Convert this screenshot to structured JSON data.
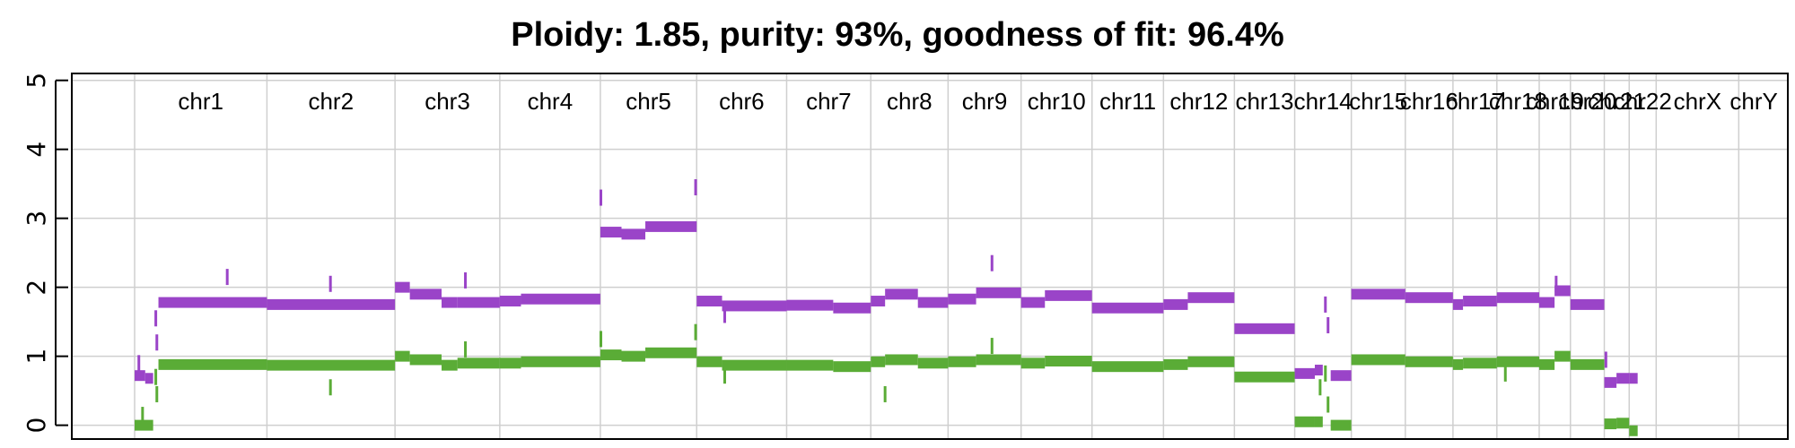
{
  "chart_data": {
    "type": "scatter",
    "title": "Ploidy: 1.85, purity: 93%, goodness of fit: 96.4%",
    "xlabel": "",
    "ylabel": "",
    "ylim": [
      -0.2,
      5.1
    ],
    "yticks": [
      0,
      1,
      2,
      3,
      4,
      5
    ],
    "grid": true,
    "colors": {
      "total": "#9a44c8",
      "minor": "#5aac36",
      "grid": "#cfcfcf",
      "axis": "#000000"
    },
    "genome_extent": [
      0,
      3100
    ],
    "chromosomes": [
      {
        "name": "chr1",
        "start": 0,
        "end": 250
      },
      {
        "name": "chr2",
        "start": 250,
        "end": 492
      },
      {
        "name": "chr3",
        "start": 492,
        "end": 690
      },
      {
        "name": "chr4",
        "start": 690,
        "end": 880
      },
      {
        "name": "chr5",
        "start": 880,
        "end": 1062
      },
      {
        "name": "chr6",
        "start": 1062,
        "end": 1232
      },
      {
        "name": "chr7",
        "start": 1232,
        "end": 1391
      },
      {
        "name": "chr8",
        "start": 1391,
        "end": 1537
      },
      {
        "name": "chr9",
        "start": 1537,
        "end": 1675
      },
      {
        "name": "chr10",
        "start": 1675,
        "end": 1809
      },
      {
        "name": "chr11",
        "start": 1809,
        "end": 1944
      },
      {
        "name": "chr12",
        "start": 1944,
        "end": 2078
      },
      {
        "name": "chr13",
        "start": 2078,
        "end": 2192
      },
      {
        "name": "chr14",
        "start": 2192,
        "end": 2299
      },
      {
        "name": "chr15",
        "start": 2299,
        "end": 2401
      },
      {
        "name": "chr16",
        "start": 2401,
        "end": 2491
      },
      {
        "name": "chr17",
        "start": 2491,
        "end": 2574
      },
      {
        "name": "chr18",
        "start": 2574,
        "end": 2654
      },
      {
        "name": "chr19",
        "start": 2654,
        "end": 2713
      },
      {
        "name": "chr20",
        "start": 2713,
        "end": 2777
      },
      {
        "name": "chr21",
        "start": 2777,
        "end": 2824
      },
      {
        "name": "chr22",
        "start": 2824,
        "end": 2875
      },
      {
        "name": "chrX",
        "start": 2875,
        "end": 3031
      },
      {
        "name": "chrY",
        "start": 3031,
        "end": 3088
      }
    ],
    "series": [
      {
        "color_key": "total",
        "segments": [
          {
            "x": [
              0,
              20
            ],
            "y": 0.72
          },
          {
            "x": [
              20,
              35
            ],
            "y": 0.68
          },
          {
            "x": [
              45,
              250
            ],
            "y": 1.78
          },
          {
            "x": [
              250,
              492
            ],
            "y": 1.75
          },
          {
            "x": [
              492,
              520
            ],
            "y": 2.0
          },
          {
            "x": [
              520,
              580
            ],
            "y": 1.9
          },
          {
            "x": [
              580,
              610
            ],
            "y": 1.78
          },
          {
            "x": [
              610,
              690
            ],
            "y": 1.78
          },
          {
            "x": [
              690,
              730
            ],
            "y": 1.8
          },
          {
            "x": [
              730,
              880
            ],
            "y": 1.83
          },
          {
            "x": [
              880,
              920
            ],
            "y": 2.8
          },
          {
            "x": [
              920,
              965
            ],
            "y": 2.77
          },
          {
            "x": [
              965,
              1062
            ],
            "y": 2.88
          },
          {
            "x": [
              1062,
              1110
            ],
            "y": 1.8
          },
          {
            "x": [
              1110,
              1232
            ],
            "y": 1.73
          },
          {
            "x": [
              1232,
              1320
            ],
            "y": 1.74
          },
          {
            "x": [
              1320,
              1391
            ],
            "y": 1.7
          },
          {
            "x": [
              1391,
              1418
            ],
            "y": 1.8
          },
          {
            "x": [
              1418,
              1480
            ],
            "y": 1.9
          },
          {
            "x": [
              1480,
              1537
            ],
            "y": 1.78
          },
          {
            "x": [
              1537,
              1590
            ],
            "y": 1.83
          },
          {
            "x": [
              1590,
              1675
            ],
            "y": 1.92
          },
          {
            "x": [
              1675,
              1720
            ],
            "y": 1.78
          },
          {
            "x": [
              1720,
              1809
            ],
            "y": 1.88
          },
          {
            "x": [
              1809,
              1944
            ],
            "y": 1.7
          },
          {
            "x": [
              1944,
              1990
            ],
            "y": 1.75
          },
          {
            "x": [
              1990,
              2078
            ],
            "y": 1.85
          },
          {
            "x": [
              2078,
              2192
            ],
            "y": 1.4
          },
          {
            "x": [
              2192,
              2230
            ],
            "y": 0.75
          },
          {
            "x": [
              2230,
              2245
            ],
            "y": 0.8
          },
          {
            "x": [
              2260,
              2299
            ],
            "y": 0.72
          },
          {
            "x": [
              2299,
              2401
            ],
            "y": 1.9
          },
          {
            "x": [
              2401,
              2491
            ],
            "y": 1.85
          },
          {
            "x": [
              2491,
              2510
            ],
            "y": 1.75
          },
          {
            "x": [
              2510,
              2574
            ],
            "y": 1.8
          },
          {
            "x": [
              2574,
              2654
            ],
            "y": 1.85
          },
          {
            "x": [
              2654,
              2683
            ],
            "y": 1.78
          },
          {
            "x": [
              2683,
              2713
            ],
            "y": 1.95
          },
          {
            "x": [
              2713,
              2777
            ],
            "y": 1.75
          },
          {
            "x": [
              2777,
              2800
            ],
            "y": 0.62
          },
          {
            "x": [
              2800,
              2824
            ],
            "y": 0.68
          },
          {
            "x": [
              2824,
              2840
            ],
            "y": 0.68
          }
        ],
        "outliers": [
          {
            "x": 8,
            "y": 0.9
          },
          {
            "x": 40,
            "y": 1.55
          },
          {
            "x": 42,
            "y": 1.2
          },
          {
            "x": 175,
            "y": 2.15
          },
          {
            "x": 370,
            "y": 2.05
          },
          {
            "x": 625,
            "y": 2.1
          },
          {
            "x": 881,
            "y": 3.3
          },
          {
            "x": 1060,
            "y": 3.45
          },
          {
            "x": 1115,
            "y": 1.6
          },
          {
            "x": 1620,
            "y": 2.35
          },
          {
            "x": 2686,
            "y": 2.05
          },
          {
            "x": 2250,
            "y": 1.75
          },
          {
            "x": 2255,
            "y": 1.45
          },
          {
            "x": 2780,
            "y": 0.95
          }
        ]
      },
      {
        "color_key": "minor",
        "segments": [
          {
            "x": [
              0,
              35
            ],
            "y": 0.0
          },
          {
            "x": [
              45,
              250
            ],
            "y": 0.88
          },
          {
            "x": [
              250,
              492
            ],
            "y": 0.87
          },
          {
            "x": [
              492,
              520
            ],
            "y": 1.0
          },
          {
            "x": [
              520,
              580
            ],
            "y": 0.95
          },
          {
            "x": [
              580,
              610
            ],
            "y": 0.87
          },
          {
            "x": [
              610,
              690
            ],
            "y": 0.9
          },
          {
            "x": [
              690,
              730
            ],
            "y": 0.9
          },
          {
            "x": [
              730,
              880
            ],
            "y": 0.92
          },
          {
            "x": [
              880,
              920
            ],
            "y": 1.02
          },
          {
            "x": [
              920,
              965
            ],
            "y": 1.0
          },
          {
            "x": [
              965,
              1062
            ],
            "y": 1.05
          },
          {
            "x": [
              1062,
              1110
            ],
            "y": 0.92
          },
          {
            "x": [
              1110,
              1232
            ],
            "y": 0.87
          },
          {
            "x": [
              1232,
              1320
            ],
            "y": 0.87
          },
          {
            "x": [
              1320,
              1391
            ],
            "y": 0.85
          },
          {
            "x": [
              1391,
              1418
            ],
            "y": 0.92
          },
          {
            "x": [
              1418,
              1480
            ],
            "y": 0.95
          },
          {
            "x": [
              1480,
              1537
            ],
            "y": 0.9
          },
          {
            "x": [
              1537,
              1590
            ],
            "y": 0.92
          },
          {
            "x": [
              1590,
              1675
            ],
            "y": 0.95
          },
          {
            "x": [
              1675,
              1720
            ],
            "y": 0.9
          },
          {
            "x": [
              1720,
              1809
            ],
            "y": 0.93
          },
          {
            "x": [
              1809,
              1944
            ],
            "y": 0.85
          },
          {
            "x": [
              1944,
              1990
            ],
            "y": 0.88
          },
          {
            "x": [
              1990,
              2078
            ],
            "y": 0.92
          },
          {
            "x": [
              2078,
              2192
            ],
            "y": 0.7
          },
          {
            "x": [
              2192,
              2230
            ],
            "y": 0.05
          },
          {
            "x": [
              2230,
              2245
            ],
            "y": 0.05
          },
          {
            "x": [
              2260,
              2299
            ],
            "y": 0.0
          },
          {
            "x": [
              2299,
              2401
            ],
            "y": 0.95
          },
          {
            "x": [
              2401,
              2491
            ],
            "y": 0.92
          },
          {
            "x": [
              2491,
              2510
            ],
            "y": 0.88
          },
          {
            "x": [
              2510,
              2574
            ],
            "y": 0.9
          },
          {
            "x": [
              2574,
              2654
            ],
            "y": 0.92
          },
          {
            "x": [
              2654,
              2683
            ],
            "y": 0.88
          },
          {
            "x": [
              2683,
              2713
            ],
            "y": 1.0
          },
          {
            "x": [
              2713,
              2777
            ],
            "y": 0.88
          },
          {
            "x": [
              2777,
              2800
            ],
            "y": 0.02
          },
          {
            "x": [
              2800,
              2824
            ],
            "y": 0.03
          },
          {
            "x": [
              2824,
              2840
            ],
            "y": -0.08
          }
        ],
        "outliers": [
          {
            "x": 15,
            "y": 0.15
          },
          {
            "x": 40,
            "y": 0.7
          },
          {
            "x": 42,
            "y": 0.45
          },
          {
            "x": 370,
            "y": 0.55
          },
          {
            "x": 625,
            "y": 1.1
          },
          {
            "x": 881,
            "y": 1.25
          },
          {
            "x": 1060,
            "y": 1.35
          },
          {
            "x": 1115,
            "y": 0.72
          },
          {
            "x": 1418,
            "y": 0.45
          },
          {
            "x": 1620,
            "y": 1.15
          },
          {
            "x": 2240,
            "y": 0.55
          },
          {
            "x": 2250,
            "y": 0.75
          },
          {
            "x": 2255,
            "y": 0.3
          },
          {
            "x": 2590,
            "y": 0.75
          }
        ]
      }
    ]
  }
}
